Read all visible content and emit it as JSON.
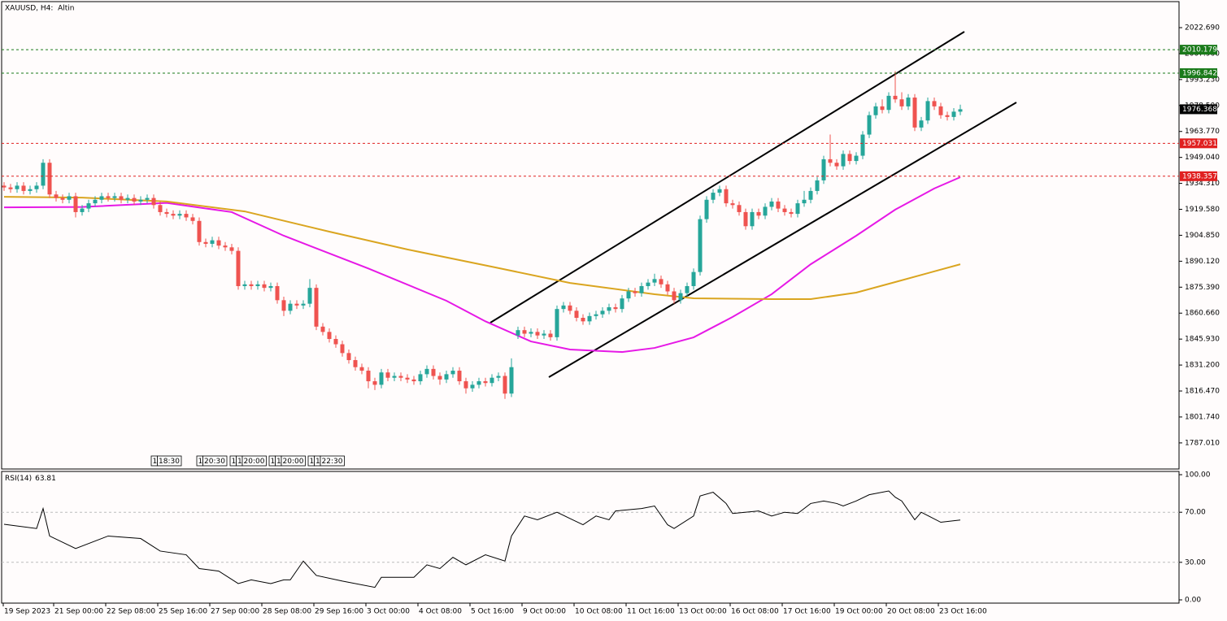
{
  "chart_data": [
    {
      "type": "candlestick",
      "title": "XAUUSD, H4:  Altin",
      "open": [
        1933,
        1932,
        1931,
        1933,
        1930,
        1931,
        1933,
        1946,
        1928,
        1926,
        1925,
        1927,
        1918,
        1920,
        1923,
        1925,
        1927,
        1926,
        1927,
        1925,
        1926,
        1924,
        1925,
        1926,
        1922,
        1918,
        1917,
        1916,
        1917,
        1915,
        1913,
        1901,
        1900,
        1902,
        1899,
        1898,
        1896,
        1876,
        1877,
        1876,
        1877,
        1875,
        1876,
        1868,
        1862,
        1866,
        1865,
        1866,
        1875,
        1853,
        1850,
        1846,
        1843,
        1838,
        1834,
        1830,
        1828,
        1822,
        1820,
        1827,
        1824,
        1825,
        1824,
        1823,
        1822,
        1826,
        1829,
        1825,
        1823,
        1826,
        1828,
        1822,
        1818,
        1820,
        1822,
        1821,
        1824,
        1825,
        1815,
        1848,
        1851,
        1849,
        1850,
        1848,
        1849,
        1847,
        1863,
        1865,
        1862,
        1858,
        1856,
        1859,
        1860,
        1862,
        1864,
        1863,
        1869,
        1873,
        1872,
        1876,
        1878,
        1880,
        1877,
        1873,
        1868,
        1872,
        1876,
        1884,
        1914,
        1925,
        1929,
        1931,
        1923,
        1922,
        1918,
        1910,
        1918,
        1916,
        1921,
        1924,
        1920,
        1918,
        1917,
        1923,
        1925,
        1930,
        1936,
        1948,
        1946,
        1944,
        1951,
        1947,
        1950,
        1962,
        1973,
        1978,
        1976,
        1984,
        1982,
        1978,
        1983,
        1966,
        1970,
        1981,
        1978,
        1973,
        1972,
        1975
      ],
      "high": [
        1935,
        1934,
        1935,
        1935,
        1933,
        1935,
        1948,
        1948,
        1930,
        1928,
        1929,
        1929,
        1922,
        1925,
        1927,
        1929,
        1929,
        1929,
        1929,
        1928,
        1928,
        1927,
        1928,
        1928,
        1924,
        1920,
        1919,
        1919,
        1919,
        1917,
        1915,
        1903,
        1904,
        1904,
        1901,
        1900,
        1898,
        1879,
        1879,
        1879,
        1879,
        1878,
        1878,
        1870,
        1868,
        1868,
        1868,
        1880,
        1877,
        1855,
        1852,
        1848,
        1845,
        1840,
        1836,
        1832,
        1830,
        1824,
        1829,
        1829,
        1827,
        1827,
        1826,
        1825,
        1828,
        1831,
        1831,
        1827,
        1828,
        1830,
        1830,
        1824,
        1822,
        1824,
        1824,
        1826,
        1827,
        1827,
        1835,
        1853,
        1853,
        1852,
        1852,
        1851,
        1851,
        1865,
        1867,
        1867,
        1864,
        1860,
        1861,
        1862,
        1864,
        1866,
        1866,
        1871,
        1875,
        1875,
        1878,
        1880,
        1883,
        1882,
        1879,
        1875,
        1874,
        1878,
        1886,
        1916,
        1927,
        1931,
        1933,
        1933,
        1925,
        1924,
        1920,
        1920,
        1920,
        1923,
        1926,
        1926,
        1922,
        1920,
        1925,
        1930,
        1932,
        1938,
        1950,
        1962,
        1948,
        1953,
        1953,
        1952,
        1964,
        1975,
        1980,
        1982,
        1986,
        1998,
        1986,
        1985,
        1985,
        1972,
        1983,
        1983,
        1980,
        1975,
        1977,
        1979
      ],
      "low": [
        1930,
        1929,
        1929,
        1928,
        1928,
        1929,
        1931,
        1926,
        1924,
        1923,
        1923,
        1915,
        1916,
        1918,
        1921,
        1923,
        1924,
        1924,
        1923,
        1923,
        1922,
        1922,
        1923,
        1920,
        1916,
        1915,
        1914,
        1914,
        1913,
        1911,
        1899,
        1898,
        1898,
        1897,
        1896,
        1894,
        1874,
        1874,
        1874,
        1874,
        1873,
        1873,
        1866,
        1859,
        1860,
        1863,
        1863,
        1864,
        1851,
        1848,
        1844,
        1841,
        1836,
        1832,
        1828,
        1826,
        1818,
        1817,
        1818,
        1822,
        1822,
        1822,
        1821,
        1820,
        1820,
        1824,
        1823,
        1820,
        1821,
        1824,
        1820,
        1815,
        1816,
        1818,
        1819,
        1819,
        1822,
        1812,
        1813,
        1846,
        1847,
        1847,
        1846,
        1846,
        1845,
        1845,
        1861,
        1860,
        1856,
        1854,
        1854,
        1857,
        1858,
        1860,
        1861,
        1861,
        1867,
        1870,
        1870,
        1874,
        1876,
        1875,
        1871,
        1866,
        1866,
        1870,
        1874,
        1882,
        1912,
        1923,
        1927,
        1921,
        1920,
        1916,
        1908,
        1908,
        1914,
        1914,
        1919,
        1918,
        1916,
        1915,
        1915,
        1921,
        1923,
        1928,
        1934,
        1944,
        1942,
        1942,
        1945,
        1945,
        1948,
        1960,
        1971,
        1974,
        1974,
        1980,
        1976,
        1976,
        1964,
        1964,
        1968,
        1976,
        1971,
        1970,
        1970,
        1973
      ],
      "close": [
        1932,
        1931,
        1933,
        1930,
        1931,
        1933,
        1946,
        1928,
        1926,
        1925,
        1927,
        1918,
        1920,
        1923,
        1925,
        1927,
        1926,
        1927,
        1925,
        1926,
        1924,
        1925,
        1926,
        1922,
        1918,
        1917,
        1916,
        1917,
        1915,
        1913,
        1901,
        1900,
        1902,
        1899,
        1898,
        1896,
        1876,
        1877,
        1876,
        1877,
        1875,
        1876,
        1868,
        1862,
        1866,
        1865,
        1866,
        1875,
        1853,
        1850,
        1846,
        1843,
        1838,
        1834,
        1830,
        1828,
        1822,
        1820,
        1827,
        1824,
        1825,
        1824,
        1823,
        1822,
        1826,
        1829,
        1825,
        1823,
        1826,
        1828,
        1822,
        1818,
        1820,
        1822,
        1821,
        1824,
        1825,
        1815,
        1830,
        1851,
        1849,
        1850,
        1848,
        1849,
        1847,
        1863,
        1865,
        1862,
        1858,
        1856,
        1859,
        1860,
        1862,
        1864,
        1863,
        1869,
        1873,
        1872,
        1876,
        1878,
        1880,
        1877,
        1873,
        1868,
        1872,
        1876,
        1884,
        1914,
        1925,
        1929,
        1931,
        1923,
        1922,
        1918,
        1910,
        1918,
        1916,
        1921,
        1924,
        1920,
        1918,
        1917,
        1923,
        1925,
        1930,
        1936,
        1948,
        1946,
        1944,
        1951,
        1947,
        1950,
        1962,
        1973,
        1978,
        1976,
        1984,
        1982,
        1978,
        1983,
        1966,
        1970,
        1981,
        1978,
        1973,
        1972,
        1975,
        1976.368
      ],
      "up_color": "#26a69a",
      "down_color": "#ef5350",
      "series": [
        {
          "color": "#e619e6",
          "x": [
            0,
            12,
            25,
            35,
            43,
            56,
            68,
            74,
            81,
            87,
            95,
            100,
            106,
            112,
            118,
            124,
            131,
            137,
            143,
            147
          ],
          "values": [
            1920.7,
            1920.9,
            1923.2,
            1918,
            1904.6,
            1886,
            1867.7,
            1856,
            1844.6,
            1840,
            1838.6,
            1840.9,
            1846.9,
            1858.5,
            1871.4,
            1888.4,
            1904.6,
            1919.4,
            1931.4,
            1937.8
          ]
        },
        {
          "color": "#daa520",
          "x": [
            0,
            12,
            25,
            37,
            50,
            62,
            75,
            87,
            100,
            106,
            118,
            124,
            131,
            137,
            147
          ],
          "values": [
            1926.7,
            1926.2,
            1924,
            1918.4,
            1906.9,
            1896.8,
            1887,
            1877.8,
            1871.4,
            1869.1,
            1868.6,
            1868.6,
            1872.3,
            1878.3,
            1888.4
          ]
        }
      ],
      "levels": [
        {
          "value": 2010.179,
          "color": "#1a7a1a"
        },
        {
          "value": 1996.842,
          "color": "#1a7a1a"
        },
        {
          "value": 1957.031,
          "color": "#e02020"
        },
        {
          "value": 1938.357,
          "color": "#e02020"
        }
      ],
      "last_price": 1976.368,
      "ylim": [
        1772.2,
        2037.45
      ],
      "yticks": [
        {
          "value": 2022.69,
          "label": "2022.690"
        },
        {
          "value": 2007.96,
          "label": "2007.960"
        },
        {
          "value": 1993.23,
          "label": "1993.230"
        },
        {
          "value": 1978.5,
          "label": "1978.500"
        },
        {
          "value": 1963.77,
          "label": "1963.770"
        },
        {
          "value": 1949.04,
          "label": "1949.040"
        },
        {
          "value": 1934.31,
          "label": "1934.310"
        },
        {
          "value": 1919.58,
          "label": "1919.580"
        },
        {
          "value": 1904.85,
          "label": "1904.850"
        },
        {
          "value": 1890.12,
          "label": "1890.120"
        },
        {
          "value": 1875.39,
          "label": "1875.390"
        },
        {
          "value": 1860.66,
          "label": "1860.660"
        },
        {
          "value": 1845.93,
          "label": "1845.930"
        },
        {
          "value": 1831.2,
          "label": "1831.200"
        },
        {
          "value": 1816.47,
          "label": "1816.470"
        },
        {
          "value": 1801.74,
          "label": "1801.740"
        },
        {
          "value": 1787.01,
          "label": "1787.010"
        }
      ],
      "events": [
        [
          "1",
          "18:30"
        ],
        [
          "1",
          "20:30"
        ],
        [
          "1",
          "1",
          "20:00"
        ],
        [
          "1",
          "1",
          "20:00"
        ],
        [
          "1",
          "1",
          "22:30"
        ]
      ]
    },
    {
      "type": "line",
      "series": [
        {
          "name": "RSI(14)",
          "color": "#000000",
          "x": [
            0,
            5,
            6,
            7,
            11,
            16,
            21,
            24,
            28,
            30,
            33,
            36,
            38,
            41,
            43,
            44,
            46,
            48,
            52,
            57,
            58,
            63,
            65,
            67,
            69,
            71,
            74,
            77,
            78,
            80,
            82,
            85,
            87,
            89,
            91,
            93,
            94,
            98,
            100,
            102,
            103,
            106,
            107,
            109,
            111,
            112,
            116,
            118,
            120,
            122,
            124,
            126,
            128,
            129,
            131,
            133,
            136,
            137,
            138,
            140,
            141,
            144,
            147
          ],
          "values": [
            60.4,
            57,
            73,
            51,
            41,
            51,
            49,
            39,
            36,
            25,
            23,
            13,
            16,
            13,
            16,
            16,
            31,
            19.5,
            15,
            10,
            18,
            18,
            28,
            25,
            34,
            28,
            36,
            31,
            51,
            67,
            64,
            70,
            65,
            60,
            67,
            64,
            71,
            73,
            75,
            60,
            57,
            67,
            83,
            86,
            77,
            69,
            71,
            67,
            70,
            69,
            77,
            79,
            77,
            75,
            79,
            84,
            87,
            82,
            79,
            64,
            70,
            62,
            63.81
          ]
        }
      ],
      "last_value": 63.81,
      "levels": [
        70,
        30
      ],
      "ylim": [
        -2.6,
        102.6
      ],
      "yticks": [
        {
          "value": 100,
          "label": "100.00"
        },
        {
          "value": 70,
          "label": "70.00"
        },
        {
          "value": 30,
          "label": "30.00"
        },
        {
          "value": 0,
          "label": "0.00"
        }
      ],
      "x_labels": [
        "19 Sep 2023",
        "21 Sep 00:00",
        "22 Sep 08:00",
        "25 Sep 16:00",
        "27 Sep 00:00",
        "28 Sep 08:00",
        "29 Sep 16:00",
        "3 Oct 00:00",
        "4 Oct 08:00",
        "5 Oct 16:00",
        "9 Oct 00:00",
        "10 Oct 08:00",
        "11 Oct 16:00",
        "13 Oct 00:00",
        "16 Oct 08:00",
        "17 Oct 16:00",
        "19 Oct 00:00",
        "20 Oct 08:00",
        "23 Oct 16:00"
      ]
    }
  ]
}
